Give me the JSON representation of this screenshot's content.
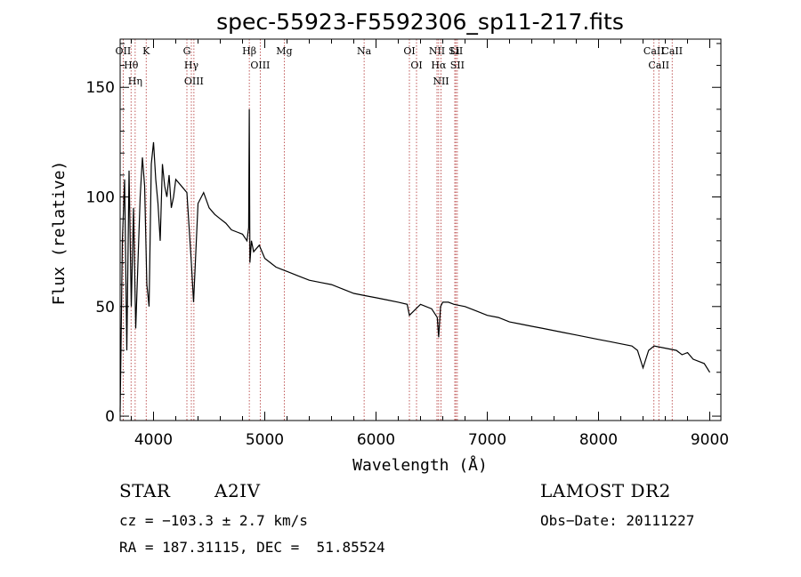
{
  "chart_data": {
    "type": "line",
    "title": "spec-55923-F5592306_sp11-217.fits",
    "xlabel": "Wavelength (Å)",
    "ylabel": "Flux (relative)",
    "xlim": [
      3700,
      9100
    ],
    "ylim": [
      -2,
      172
    ],
    "xticks": [
      4000,
      5000,
      6000,
      7000,
      8000,
      9000
    ],
    "yticks": [
      0,
      50,
      100,
      150
    ],
    "grid": false,
    "series": [
      {
        "color": "#000000",
        "x": [
          3700,
          3720,
          3740,
          3760,
          3780,
          3800,
          3820,
          3840,
          3860,
          3880,
          3900,
          3920,
          3940,
          3960,
          3980,
          4000,
          4020,
          4040,
          4060,
          4080,
          4100,
          4120,
          4140,
          4160,
          4180,
          4200,
          4250,
          4300,
          4340,
          4360,
          4400,
          4450,
          4500,
          4550,
          4600,
          4650,
          4700,
          4750,
          4800,
          4840,
          4855,
          4861,
          4866,
          4880,
          4900,
          4950,
          5000,
          5050,
          5100,
          5150,
          5200,
          5300,
          5400,
          5500,
          5600,
          5700,
          5800,
          5900,
          6000,
          6100,
          6200,
          6280,
          6300,
          6400,
          6500,
          6550,
          6563,
          6580,
          6600,
          6650,
          6700,
          6800,
          6900,
          7000,
          7100,
          7200,
          7300,
          7400,
          7500,
          7600,
          7700,
          7800,
          7900,
          8000,
          8100,
          8200,
          8300,
          8350,
          8400,
          8450,
          8500,
          8600,
          8700,
          8750,
          8800,
          8850,
          8900,
          8950,
          9000
        ],
        "y": [
          2,
          80,
          108,
          30,
          112,
          50,
          95,
          40,
          70,
          100,
          118,
          105,
          60,
          50,
          115,
          125,
          108,
          97,
          80,
          115,
          105,
          100,
          110,
          95,
          100,
          108,
          105,
          102,
          70,
          52,
          97,
          102,
          95,
          92,
          90,
          88,
          85,
          84,
          83,
          80,
          86,
          140,
          70,
          80,
          75,
          78,
          72,
          70,
          68,
          67,
          66,
          64,
          62,
          61,
          60,
          58,
          56,
          55,
          54,
          53,
          52,
          51,
          46,
          51,
          49,
          45,
          36,
          50,
          52,
          52,
          51,
          50,
          48,
          46,
          45,
          43,
          42,
          41,
          40,
          39,
          38,
          37,
          36,
          35,
          34,
          33,
          32,
          30,
          22,
          30,
          32,
          31,
          30,
          28,
          29,
          26,
          25,
          24,
          20
        ]
      }
    ],
    "annotations": [
      {
        "wavelength": 3727,
        "labels": [
          "OII"
        ]
      },
      {
        "wavelength": 3798,
        "labels": [
          "Hθ"
        ]
      },
      {
        "wavelength": 3835,
        "labels": [
          "Hη"
        ]
      },
      {
        "wavelength": 3934,
        "labels": [
          "K"
        ]
      },
      {
        "wavelength": 4300,
        "labels": [
          "G"
        ]
      },
      {
        "wavelength": 4340,
        "labels": [
          "Hγ"
        ]
      },
      {
        "wavelength": 4363,
        "labels": [
          "OIII"
        ]
      },
      {
        "wavelength": 4861,
        "labels": [
          "Hβ"
        ]
      },
      {
        "wavelength": 4959,
        "labels": [
          "OIII"
        ]
      },
      {
        "wavelength": 5175,
        "labels": [
          "Mg"
        ]
      },
      {
        "wavelength": 5893,
        "labels": [
          "Na"
        ]
      },
      {
        "wavelength": 6300,
        "labels": [
          "OI"
        ]
      },
      {
        "wavelength": 6364,
        "labels": [
          "OI"
        ]
      },
      {
        "wavelength": 6548,
        "labels": [
          "NII"
        ]
      },
      {
        "wavelength": 6563,
        "labels": [
          "Hα"
        ]
      },
      {
        "wavelength": 6584,
        "labels": [
          "NII"
        ]
      },
      {
        "wavelength": 6708,
        "labels": [
          "Li"
        ]
      },
      {
        "wavelength": 6717,
        "labels": [
          "SII"
        ]
      },
      {
        "wavelength": 6731,
        "labels": [
          "SII"
        ]
      },
      {
        "wavelength": 8498,
        "labels": [
          "CaII"
        ]
      },
      {
        "wavelength": 8542,
        "labels": [
          "CaII"
        ]
      },
      {
        "wavelength": 8662,
        "labels": [
          "CaII"
        ]
      }
    ]
  },
  "info": {
    "object_class": "STAR",
    "subclass": "A2IV",
    "survey": "LAMOST DR2",
    "velocity": "cz = −103.3 ± 2.7 km/s",
    "coords": "RA = 187.31115, DEC =  51.85524",
    "obs_date": "Obs−Date: 20111227"
  },
  "colors": {
    "line_marker": "#b03030",
    "spectrum": "#000000"
  }
}
